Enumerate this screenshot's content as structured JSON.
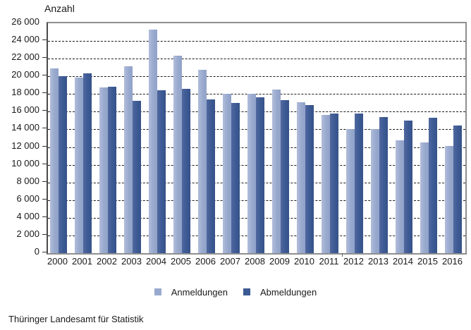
{
  "chart": {
    "axis_title": "Anzahl",
    "source": "Thüringer Landesamt für Statistik"
  },
  "chart_data": {
    "type": "bar",
    "title": "",
    "ylabel": "Anzahl",
    "xlabel": "",
    "categories": [
      "2000",
      "2001",
      "2002",
      "2003",
      "2004",
      "2005",
      "2006",
      "2007",
      "2008",
      "2009",
      "2010",
      "2011",
      "2012",
      "2013",
      "2014",
      "2015",
      "2016"
    ],
    "series": [
      {
        "name": "Anmeldungen",
        "color": "#98A9CE",
        "values": [
          20900,
          19850,
          18750,
          21150,
          25300,
          22300,
          20750,
          18050,
          18000,
          18500,
          17100,
          15650,
          14000,
          14050,
          12750,
          12550,
          12100
        ]
      },
      {
        "name": "Abmeldungen",
        "color": "#3C5A94",
        "values": [
          20050,
          20300,
          18850,
          17200,
          18400,
          18550,
          17350,
          16950,
          17650,
          17300,
          16750,
          15800,
          15800,
          15400,
          15000,
          15300,
          14450
        ]
      }
    ],
    "ylim": [
      0,
      26000
    ],
    "ytick_step": 2000,
    "ytick_labels": [
      "0",
      "2 000",
      "4 000",
      "6 000",
      "8 000",
      "10 000",
      "12 000",
      "14 000",
      "16 000",
      "18 000",
      "20 000",
      "22 000",
      "24 000",
      "26 000"
    ],
    "grid": "horizontal-dashed",
    "legend_position": "bottom"
  }
}
